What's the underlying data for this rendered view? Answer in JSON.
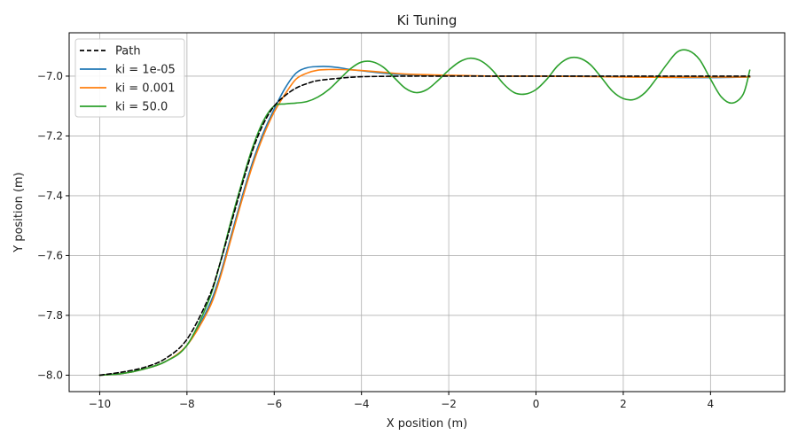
{
  "chart_data": {
    "type": "line",
    "title": "Ki Tuning",
    "xlabel": "X position (m)",
    "ylabel": "Y position (m)",
    "xlim": [
      -10.7,
      5.7
    ],
    "ylim": [
      -8.055,
      -6.855
    ],
    "x_ticks": [
      -10,
      -8,
      -6,
      -4,
      -2,
      0,
      2,
      4
    ],
    "y_ticks": [
      -8.0,
      -7.8,
      -7.6,
      -7.4,
      -7.2,
      -7.0
    ],
    "x_tick_labels": [
      "−10",
      "−8",
      "−6",
      "−4",
      "−2",
      "0",
      "2",
      "4"
    ],
    "y_tick_labels": [
      "−8.0",
      "−7.8",
      "−7.6",
      "−7.4",
      "−7.2",
      "−7.0"
    ],
    "grid": true,
    "legend_position": "top-left",
    "series": [
      {
        "name": "Path",
        "color": "#000000",
        "dash": "dashed",
        "x": [
          -10,
          -9.5,
          -9,
          -8.5,
          -8,
          -7.5,
          -7.25,
          -7,
          -6.75,
          -6.5,
          -6.25,
          -6,
          -5.75,
          -5.5,
          -5.25,
          -5,
          -4.5,
          -4,
          -3,
          -2,
          0,
          2,
          4,
          4.9
        ],
        "y": [
          -8.0,
          -7.99,
          -7.975,
          -7.945,
          -7.88,
          -7.74,
          -7.63,
          -7.5,
          -7.37,
          -7.25,
          -7.16,
          -7.1,
          -7.065,
          -7.04,
          -7.025,
          -7.015,
          -7.007,
          -7.002,
          -7.0,
          -7.0,
          -7.0,
          -7.0,
          -7.0,
          -7.0
        ]
      },
      {
        "name": "ki = 1e-05",
        "color": "#1f77b4",
        "dash": "solid",
        "x": [
          -10,
          -9.5,
          -9,
          -8.5,
          -8,
          -7.5,
          -7.25,
          -7,
          -6.75,
          -6.5,
          -6.25,
          -6,
          -5.75,
          -5.5,
          -5.25,
          -5,
          -4.75,
          -4.5,
          -4.25,
          -4,
          -3.5,
          -3,
          -2,
          -1,
          0,
          1,
          2,
          3,
          4,
          4.9
        ],
        "y": [
          -8.0,
          -7.995,
          -7.98,
          -7.955,
          -7.9,
          -7.77,
          -7.67,
          -7.54,
          -7.41,
          -7.29,
          -7.19,
          -7.11,
          -7.04,
          -6.99,
          -6.972,
          -6.968,
          -6.968,
          -6.972,
          -6.978,
          -6.982,
          -6.99,
          -6.995,
          -6.998,
          -7.0,
          -7.0,
          -7.0,
          -7.002,
          -7.004,
          -7.005,
          -7.003
        ]
      },
      {
        "name": "ki = 0.001",
        "color": "#ff7f0e",
        "dash": "solid",
        "x": [
          -10,
          -9.5,
          -9,
          -8.5,
          -8,
          -7.5,
          -7.25,
          -7,
          -6.75,
          -6.5,
          -6.25,
          -6,
          -5.75,
          -5.5,
          -5.25,
          -5,
          -4.75,
          -4.5,
          -4.25,
          -4,
          -3.5,
          -3,
          -2,
          -1,
          0,
          1,
          2,
          3,
          4,
          4.9
        ],
        "y": [
          -8.0,
          -7.995,
          -7.98,
          -7.955,
          -7.9,
          -7.78,
          -7.68,
          -7.55,
          -7.42,
          -7.3,
          -7.2,
          -7.12,
          -7.06,
          -7.01,
          -6.99,
          -6.98,
          -6.978,
          -6.978,
          -6.979,
          -6.981,
          -6.987,
          -6.993,
          -6.997,
          -7.0,
          -7.0,
          -7.001,
          -7.003,
          -7.004,
          -7.003,
          -7.003
        ]
      },
      {
        "name": "ki = 50.0",
        "color": "#2ca02c",
        "dash": "solid",
        "x": [
          -10,
          -9.5,
          -9,
          -8.5,
          -8,
          -7.5,
          -7.25,
          -7,
          -6.75,
          -6.5,
          -6.25,
          -6,
          -5.75,
          -5.5,
          -5.25,
          -5,
          -4.75,
          -4.5,
          -4.25,
          -4,
          -3.75,
          -3.5,
          -3.25,
          -3,
          -2.75,
          -2.5,
          -2.25,
          -2,
          -1.75,
          -1.5,
          -1.25,
          -1,
          -0.75,
          -0.5,
          -0.25,
          0,
          0.25,
          0.5,
          0.75,
          1,
          1.25,
          1.5,
          1.75,
          2,
          2.25,
          2.5,
          2.75,
          3,
          3.25,
          3.5,
          3.75,
          4,
          4.25,
          4.5,
          4.75,
          4.9
        ],
        "y": [
          -8.0,
          -7.995,
          -7.98,
          -7.955,
          -7.9,
          -7.75,
          -7.63,
          -7.49,
          -7.36,
          -7.24,
          -7.15,
          -7.1,
          -7.093,
          -7.09,
          -7.085,
          -7.07,
          -7.045,
          -7.01,
          -6.975,
          -6.953,
          -6.952,
          -6.97,
          -7.005,
          -7.04,
          -7.055,
          -7.045,
          -7.015,
          -6.98,
          -6.952,
          -6.94,
          -6.95,
          -6.98,
          -7.025,
          -7.055,
          -7.06,
          -7.045,
          -7.01,
          -6.965,
          -6.94,
          -6.94,
          -6.962,
          -7.005,
          -7.05,
          -7.075,
          -7.078,
          -7.055,
          -7.01,
          -6.96,
          -6.918,
          -6.915,
          -6.945,
          -7.01,
          -7.07,
          -7.09,
          -7.06,
          -6.98
        ]
      }
    ]
  }
}
